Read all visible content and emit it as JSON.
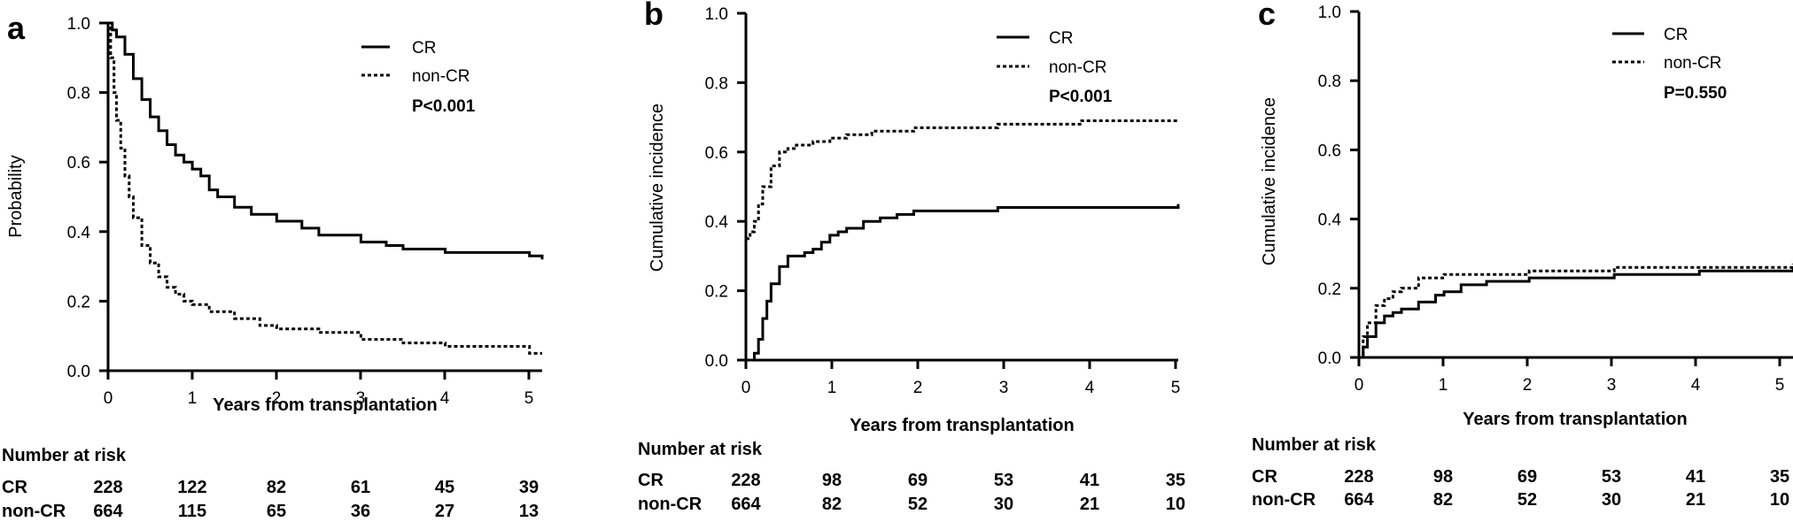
{
  "chart_data": [
    {
      "type": "line",
      "panel_label": "a",
      "ylabel": "Probability",
      "xlabel": "Years from transplantation",
      "xlim": [
        0,
        5.15
      ],
      "ylim": [
        0,
        1.0
      ],
      "x_ticks": [
        "0",
        "1",
        "2",
        "3",
        "4",
        "5"
      ],
      "y_ticks": [
        "0.0",
        "0.2",
        "0.4",
        "0.6",
        "0.8",
        "1.0"
      ],
      "legend_position": "top-right",
      "p_value": "P<0.001",
      "series": [
        {
          "name": "CR",
          "style": "solid",
          "x": [
            0,
            0.05,
            0.1,
            0.2,
            0.3,
            0.4,
            0.5,
            0.6,
            0.7,
            0.8,
            0.9,
            1.0,
            1.1,
            1.2,
            1.3,
            1.5,
            1.7,
            2.0,
            2.3,
            2.5,
            2.8,
            3.0,
            3.3,
            3.5,
            4.0,
            4.5,
            5.0,
            5.15
          ],
          "y": [
            1.0,
            0.98,
            0.96,
            0.91,
            0.84,
            0.78,
            0.73,
            0.69,
            0.65,
            0.62,
            0.6,
            0.58,
            0.56,
            0.52,
            0.5,
            0.47,
            0.45,
            0.43,
            0.41,
            0.39,
            0.39,
            0.37,
            0.36,
            0.35,
            0.34,
            0.34,
            0.33,
            0.32
          ]
        },
        {
          "name": "non-CR",
          "style": "dashed",
          "x": [
            0,
            0.03,
            0.07,
            0.1,
            0.15,
            0.2,
            0.25,
            0.3,
            0.4,
            0.5,
            0.6,
            0.7,
            0.8,
            0.9,
            1.0,
            1.2,
            1.5,
            1.8,
            2.0,
            2.5,
            3.0,
            3.5,
            4.0,
            4.5,
            5.0,
            5.15
          ],
          "y": [
            1.0,
            0.9,
            0.8,
            0.72,
            0.64,
            0.56,
            0.5,
            0.44,
            0.36,
            0.31,
            0.27,
            0.24,
            0.22,
            0.2,
            0.19,
            0.17,
            0.15,
            0.13,
            0.12,
            0.11,
            0.09,
            0.08,
            0.07,
            0.07,
            0.05,
            0.05
          ]
        }
      ],
      "risk_table": {
        "title": "Number at risk",
        "rows": [
          {
            "label": "CR",
            "values": [
              "228",
              "122",
              "82",
              "61",
              "45",
              "39"
            ]
          },
          {
            "label": "non-CR",
            "values": [
              "664",
              "115",
              "65",
              "36",
              "27",
              "13"
            ]
          }
        ]
      }
    },
    {
      "type": "line",
      "panel_label": "b",
      "ylabel": "Cumulative incidence",
      "xlabel": "Years from transplantation",
      "xlim": [
        0,
        5.15
      ],
      "ylim": [
        0,
        1.0
      ],
      "x_ticks": [
        "0",
        "1",
        "2",
        "3",
        "4",
        "5"
      ],
      "y_ticks": [
        "0.0",
        "0.2",
        "0.4",
        "0.6",
        "0.8",
        "1.0"
      ],
      "legend_position": "top-right",
      "p_value": "P<0.001",
      "series": [
        {
          "name": "CR",
          "style": "solid",
          "x": [
            0,
            0.1,
            0.15,
            0.2,
            0.25,
            0.3,
            0.4,
            0.5,
            0.6,
            0.7,
            0.8,
            0.9,
            1.0,
            1.1,
            1.2,
            1.4,
            1.6,
            1.8,
            2.0,
            2.1,
            2.5,
            3.0,
            4.0,
            4.8,
            5.15
          ],
          "y": [
            0,
            0.02,
            0.06,
            0.12,
            0.17,
            0.22,
            0.27,
            0.3,
            0.3,
            0.31,
            0.32,
            0.34,
            0.36,
            0.37,
            0.38,
            0.4,
            0.41,
            0.42,
            0.43,
            0.43,
            0.43,
            0.44,
            0.44,
            0.44,
            0.45
          ]
        },
        {
          "name": "non-CR",
          "style": "dashed",
          "x": [
            0,
            0.05,
            0.1,
            0.15,
            0.2,
            0.3,
            0.4,
            0.5,
            0.6,
            0.8,
            1.0,
            1.2,
            1.5,
            2.0,
            2.5,
            3.0,
            3.5,
            4.0,
            4.5,
            5.15
          ],
          "y": [
            0.35,
            0.37,
            0.4,
            0.45,
            0.5,
            0.56,
            0.6,
            0.61,
            0.62,
            0.63,
            0.64,
            0.65,
            0.66,
            0.67,
            0.67,
            0.68,
            0.68,
            0.69,
            0.69,
            0.69
          ]
        }
      ],
      "risk_table": {
        "title": "Number at risk",
        "rows": [
          {
            "label": "CR",
            "values": [
              "228",
              "98",
              "69",
              "53",
              "41",
              "35"
            ]
          },
          {
            "label": "non-CR",
            "values": [
              "664",
              "82",
              "52",
              "30",
              "21",
              "10"
            ]
          }
        ]
      }
    },
    {
      "type": "line",
      "panel_label": "c",
      "ylabel": "Cumulative incidence",
      "xlabel": "Years from transplantation",
      "xlim": [
        0,
        5.1
      ],
      "ylim": [
        0,
        1.0
      ],
      "x_ticks": [
        "0",
        "1",
        "2",
        "3",
        "4",
        "5"
      ],
      "y_ticks": [
        "0.0",
        "0.2",
        "0.4",
        "0.6",
        "0.8",
        "1.0"
      ],
      "legend_position": "top-right",
      "p_value": "P=0.550",
      "series": [
        {
          "name": "CR",
          "style": "solid",
          "x": [
            0,
            0.05,
            0.1,
            0.2,
            0.3,
            0.4,
            0.5,
            0.7,
            0.9,
            1.0,
            1.2,
            1.5,
            2.0,
            2.5,
            3.0,
            3.5,
            4.0,
            4.5,
            5.1
          ],
          "y": [
            0,
            0.03,
            0.06,
            0.1,
            0.12,
            0.13,
            0.14,
            0.16,
            0.18,
            0.19,
            0.21,
            0.22,
            0.23,
            0.23,
            0.24,
            0.24,
            0.25,
            0.25,
            0.26
          ]
        },
        {
          "name": "non-CR",
          "style": "dashed",
          "x": [
            0,
            0.05,
            0.1,
            0.2,
            0.3,
            0.4,
            0.5,
            0.7,
            0.9,
            1.0,
            1.2,
            1.5,
            2.0,
            2.5,
            3.0,
            3.5,
            4.0,
            4.5,
            5.1
          ],
          "y": [
            0,
            0.06,
            0.1,
            0.15,
            0.17,
            0.19,
            0.2,
            0.23,
            0.23,
            0.24,
            0.24,
            0.24,
            0.25,
            0.25,
            0.26,
            0.26,
            0.26,
            0.26,
            0.27
          ]
        }
      ],
      "risk_table": {
        "title": "Number at risk",
        "rows": [
          {
            "label": "CR",
            "values": [
              "228",
              "98",
              "69",
              "53",
              "41",
              "35"
            ]
          },
          {
            "label": "non-CR",
            "values": [
              "664",
              "82",
              "52",
              "30",
              "21",
              "10"
            ]
          }
        ]
      }
    }
  ]
}
